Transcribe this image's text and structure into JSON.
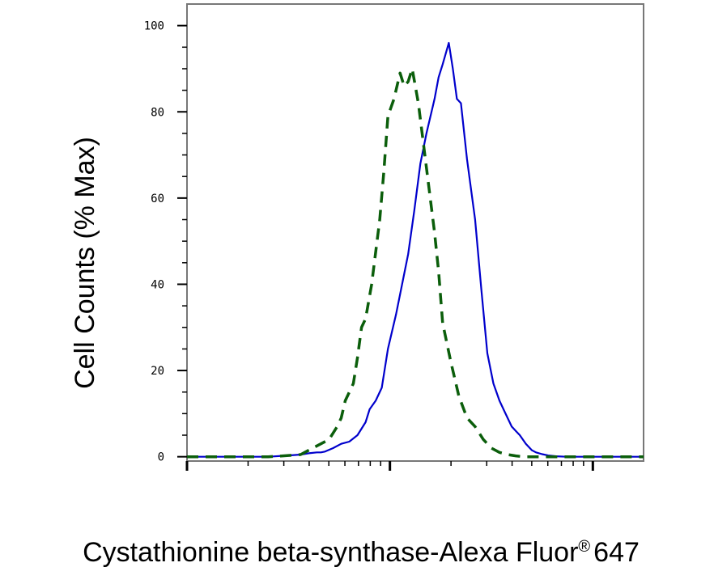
{
  "chart_data": {
    "type": "line",
    "title": "",
    "xlabel": "Cystathionine beta-synthase-Alexa Fluor",
    "xlabel_registered": "®",
    "xlabel_suffix": "647",
    "ylabel": "Cell Counts (% Max)",
    "x_scale": "log",
    "xlim": [
      0,
      2.25
    ],
    "ylim": [
      -1,
      105
    ],
    "y_ticks": [
      0,
      20,
      40,
      60,
      80,
      100
    ],
    "y_tick_labels": [
      "0",
      "20",
      "40",
      "60",
      "80",
      "100"
    ],
    "grid": false,
    "legend": "none",
    "series": [
      {
        "color": "#0000cc",
        "style": "solid",
        "x": [
          0.0,
          0.2,
          0.4,
          0.5,
          0.56,
          0.6,
          0.64,
          0.66,
          0.68,
          0.72,
          0.76,
          0.8,
          0.84,
          0.88,
          0.9,
          0.93,
          0.96,
          0.99,
          1.03,
          1.06,
          1.09,
          1.12,
          1.15,
          1.18,
          1.22,
          1.24,
          1.26,
          1.29,
          1.31,
          1.33,
          1.35,
          1.38,
          1.42,
          1.45,
          1.48,
          1.51,
          1.54,
          1.57,
          1.6,
          1.62,
          1.64,
          1.67,
          1.7,
          1.72,
          1.75,
          1.78,
          1.82,
          1.87,
          1.94,
          2.0,
          2.1,
          2.25
        ],
        "y": [
          0,
          0,
          0,
          0.3,
          0.5,
          0.8,
          1,
          1,
          1.2,
          2,
          3,
          3.5,
          5,
          8,
          11,
          13,
          16,
          25,
          33,
          40,
          47,
          57,
          68,
          75,
          83,
          88,
          91,
          96,
          90,
          83,
          82,
          69,
          55,
          39,
          24,
          17,
          13,
          10,
          7,
          6,
          5,
          3,
          1.5,
          1,
          0.6,
          0.3,
          0.1,
          0,
          0,
          0,
          0,
          0
        ]
      },
      {
        "color": "#0b5e0b",
        "style": "dashed",
        "x": [
          0.0,
          0.15,
          0.3,
          0.4,
          0.45,
          0.5,
          0.56,
          0.58,
          0.62,
          0.66,
          0.7,
          0.74,
          0.76,
          0.78,
          0.82,
          0.84,
          0.86,
          0.88,
          0.91,
          0.95,
          0.97,
          0.99,
          1.02,
          1.05,
          1.07,
          1.09,
          1.11,
          1.14,
          1.18,
          1.22,
          1.24,
          1.26,
          1.3,
          1.34,
          1.38,
          1.42,
          1.46,
          1.5,
          1.54,
          1.58,
          1.62,
          1.66,
          1.7,
          1.75,
          1.85,
          2.0,
          2.25
        ],
        "y": [
          0,
          0,
          0,
          0,
          0.1,
          0.3,
          0.5,
          1,
          2,
          3,
          4,
          7,
          9,
          13,
          17,
          23,
          30,
          32,
          40,
          55,
          66,
          79,
          83,
          89,
          86,
          87,
          90,
          82,
          67,
          52,
          43,
          31,
          22,
          14,
          9,
          7,
          4,
          2,
          1,
          0.5,
          0.2,
          0,
          0,
          0,
          0,
          0,
          0
        ]
      }
    ]
  }
}
